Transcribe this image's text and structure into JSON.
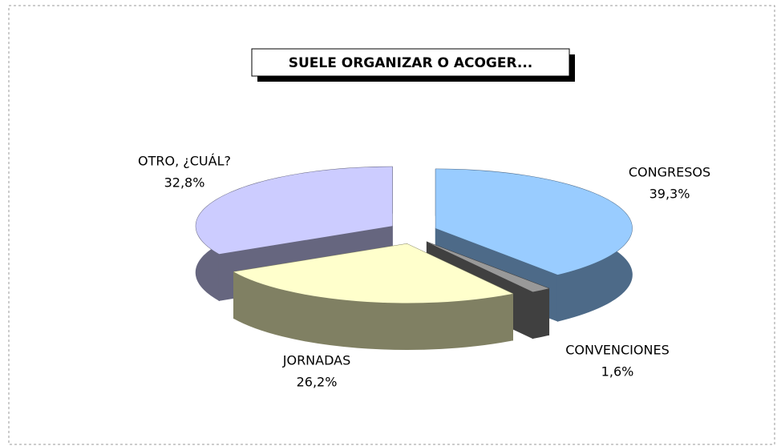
{
  "chart_data": {
    "type": "pie",
    "title": "SUELE ORGANIZAR O ACOGER...",
    "categories": [
      "CONGRESOS",
      "CONVENCIONES",
      "JORNADAS",
      "OTRO, ¿CUÁL?"
    ],
    "values": [
      39.3,
      1.6,
      26.2,
      32.8
    ],
    "value_labels": [
      "39,3%",
      "1,6%",
      "26,2%",
      "32,8%"
    ],
    "colors": [
      "#99ccff",
      "#999999",
      "#ffffcc",
      "#ccccff"
    ],
    "side_colors": [
      "#4d6a88",
      "#404040",
      "#808063",
      "#66667f"
    ]
  }
}
